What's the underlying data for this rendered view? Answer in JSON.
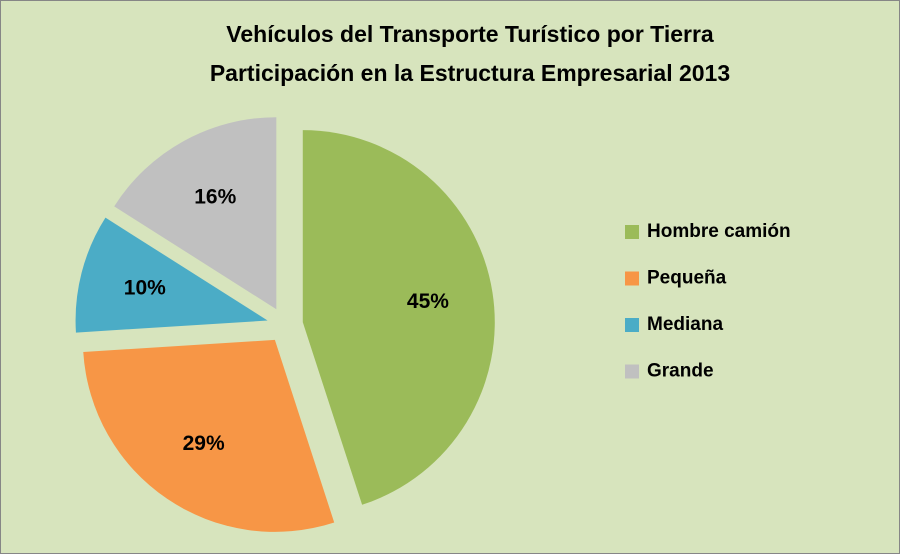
{
  "chart_data": {
    "type": "pie",
    "title": "Vehículos del Transporte Turístico por Tierra",
    "subtitle": "Participación en la Estructura Empresarial 2013",
    "categories": [
      "Hombre camión",
      "Pequeña",
      "Mediana",
      "Grande"
    ],
    "values": [
      45,
      29,
      10,
      16
    ],
    "value_labels": [
      "45%",
      "29%",
      "10%",
      "16%"
    ],
    "colors": [
      "#9bbb59",
      "#f79646",
      "#4bacc6",
      "#c0c0c0"
    ],
    "legend": "right"
  }
}
